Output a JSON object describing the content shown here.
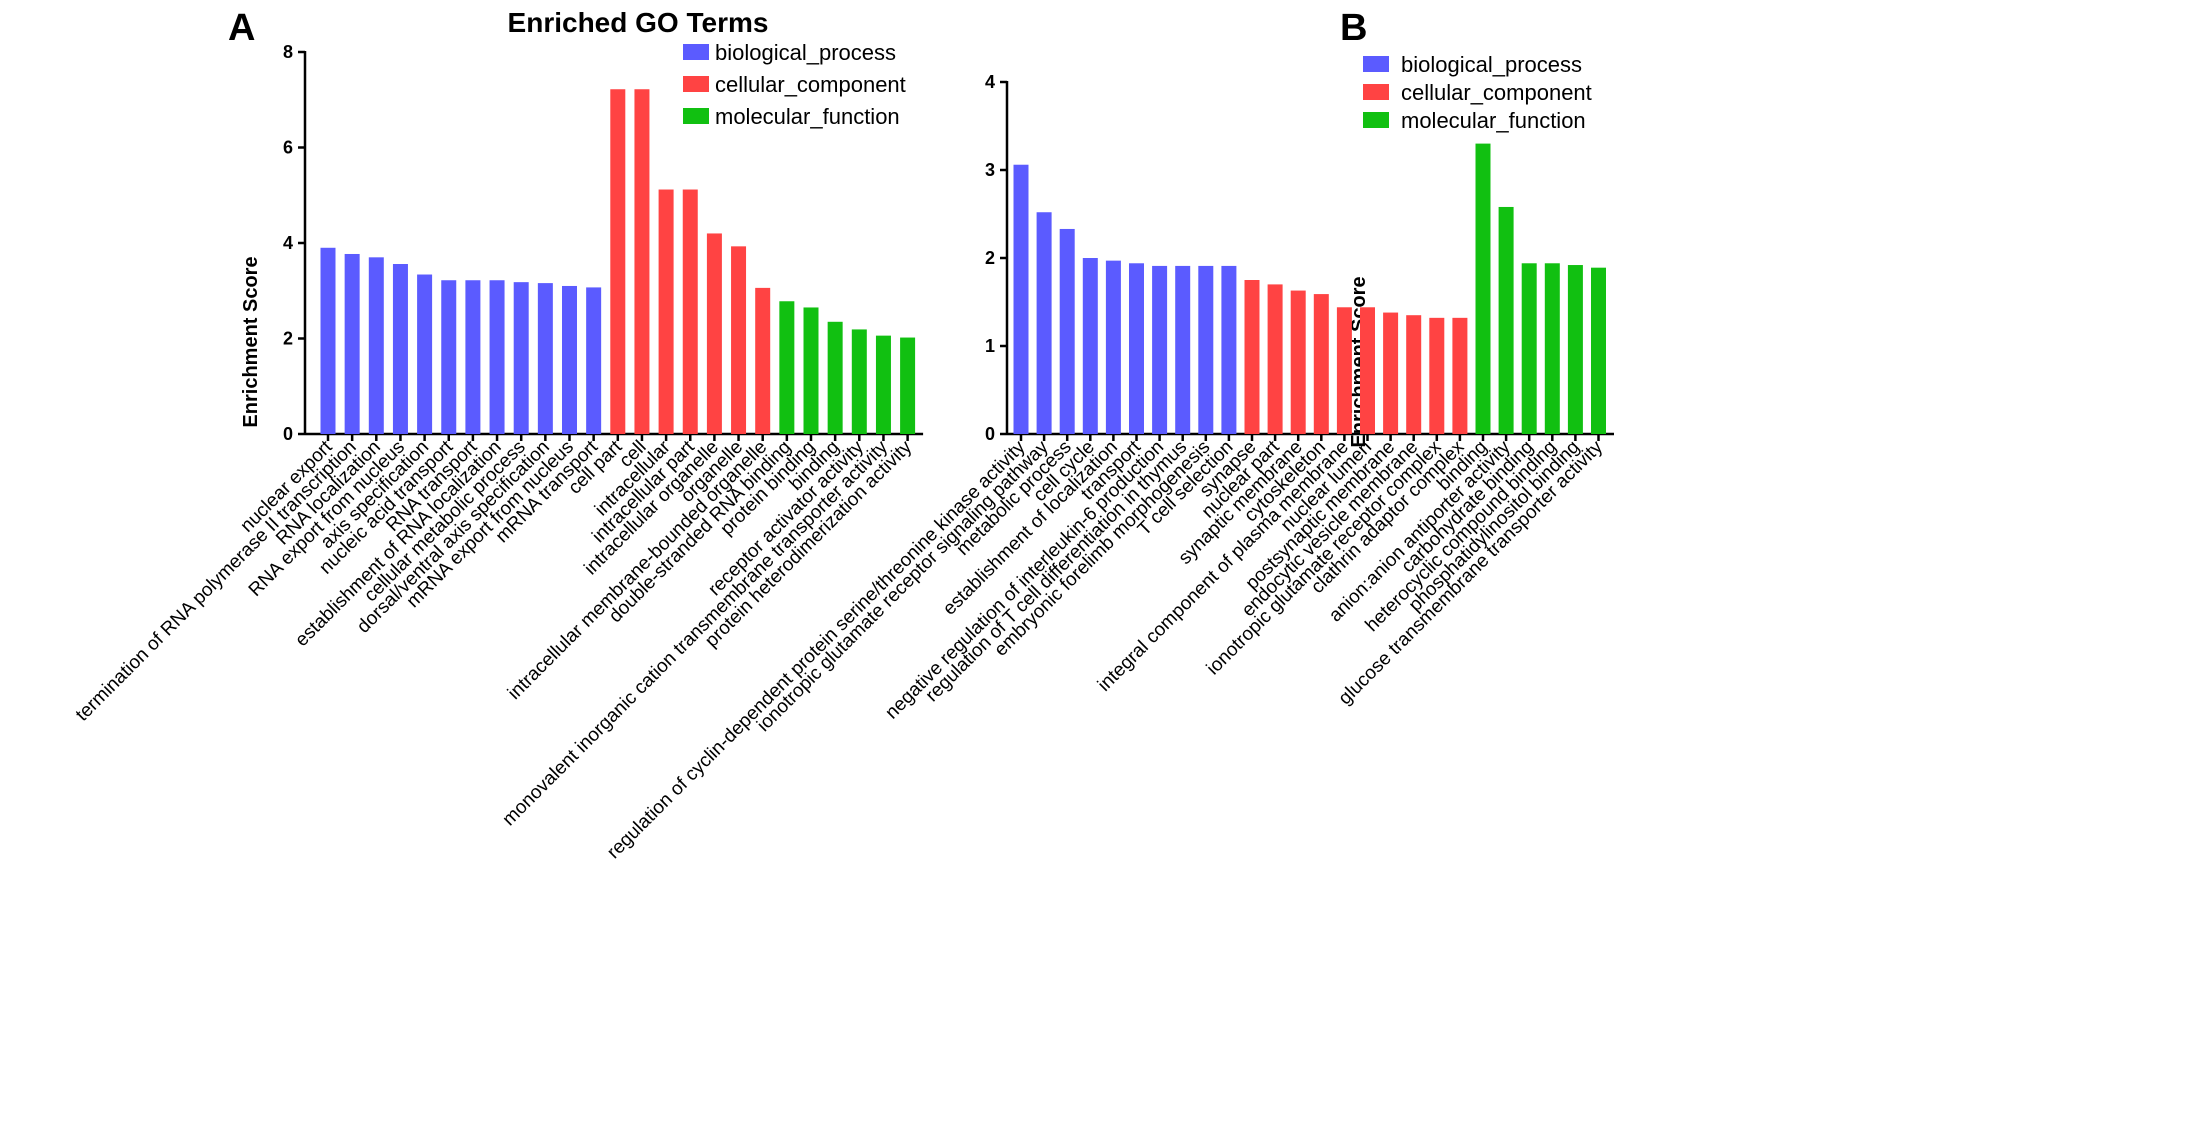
{
  "colors": {
    "biological_process": "#5b5bff",
    "cellular_component": "#ff4343",
    "molecular_function": "#11c011"
  },
  "chart_data": [
    {
      "type": "bar",
      "panel": "A",
      "title": "Enriched GO Terms",
      "xlabel": "",
      "ylabel": "Enrichment Score",
      "ylim": [
        0,
        8
      ],
      "yticks": [
        0,
        2,
        4,
        6,
        8
      ],
      "legend_position": "top-right",
      "legend": [
        "biological_process",
        "cellular_component",
        "molecular_function"
      ],
      "categories": [
        "nuclear export",
        "termination of RNA polymerase II transcription",
        "RNA localization",
        "RNA export from nucleus",
        "axis specification",
        "nucleic acid transport",
        "RNA transport",
        "establishment of RNA localization",
        "cellular metabolic process",
        "dorsal/ventral axis specification",
        "mRNA export from nucleus",
        "mRNA transport",
        "cell part",
        "cell",
        "intracellular",
        "intracellular part",
        "intracellular organelle",
        "organelle",
        "intracellular membrane-bounded organelle",
        "double-stranded RNA binding",
        "protein binding",
        "binding",
        "receptor activator activity",
        "monovalent inorganic cation transmembrane transporter activity",
        "protein heterodimerization activity"
      ],
      "groups": [
        "biological_process",
        "biological_process",
        "biological_process",
        "biological_process",
        "biological_process",
        "biological_process",
        "biological_process",
        "biological_process",
        "biological_process",
        "biological_process",
        "biological_process",
        "biological_process",
        "cellular_component",
        "cellular_component",
        "cellular_component",
        "cellular_component",
        "cellular_component",
        "cellular_component",
        "cellular_component",
        "molecular_function",
        "molecular_function",
        "molecular_function",
        "molecular_function",
        "molecular_function",
        "molecular_function"
      ],
      "values": [
        3.9,
        3.77,
        3.7,
        3.56,
        3.34,
        3.22,
        3.22,
        3.22,
        3.18,
        3.16,
        3.1,
        3.07,
        7.22,
        7.22,
        5.12,
        5.12,
        4.2,
        3.93,
        3.06,
        2.78,
        2.65,
        2.35,
        2.19,
        2.06,
        2.02
      ]
    },
    {
      "type": "bar",
      "panel": "B",
      "title": "",
      "xlabel": "",
      "ylabel": "Enrichment Score",
      "ylim": [
        0,
        4
      ],
      "yticks": [
        0,
        1,
        2,
        3,
        4
      ],
      "legend_position": "top-right",
      "legend": [
        "biological_process",
        "cellular_component",
        "molecular_function"
      ],
      "categories": [
        "regulation of cyclin-dependent protein serine/threonine kinase activity",
        "ionotropic glutamate receptor signaling pathway",
        "metabolic process",
        "cell cycle",
        "establishment of localization",
        "transport",
        "negative regulation of interleukin-6 production",
        "regulation of T cell differentiation in thymus",
        "embryonic forelimb morphogenesis",
        "T cell selection",
        "synapse",
        "nuclear part",
        "synaptic membrane",
        "cytoskeleton",
        "integral component of plasma membrane",
        "nuclear lumen",
        "postsynaptic membrane",
        "endocytic vesicle membrane",
        "ionotropic glutamate receptor complex",
        "clathrin adaptor complex",
        "binding",
        "anion:anion antiporter activity",
        "carbohydrate binding",
        "heterocyclic compound binding",
        "phosphatidylinositol binding",
        "glucose transmembrane transporter activity"
      ],
      "groups": [
        "biological_process",
        "biological_process",
        "biological_process",
        "biological_process",
        "biological_process",
        "biological_process",
        "biological_process",
        "biological_process",
        "biological_process",
        "biological_process",
        "cellular_component",
        "cellular_component",
        "cellular_component",
        "cellular_component",
        "cellular_component",
        "cellular_component",
        "cellular_component",
        "cellular_component",
        "cellular_component",
        "cellular_component",
        "molecular_function",
        "molecular_function",
        "molecular_function",
        "molecular_function",
        "molecular_function",
        "molecular_function"
      ],
      "values": [
        3.06,
        2.52,
        2.33,
        2.0,
        1.97,
        1.94,
        1.91,
        1.91,
        1.91,
        1.91,
        1.75,
        1.7,
        1.63,
        1.59,
        1.44,
        1.44,
        1.38,
        1.35,
        1.32,
        1.32,
        3.3,
        2.58,
        1.94,
        1.94,
        1.92,
        1.89
      ]
    }
  ]
}
